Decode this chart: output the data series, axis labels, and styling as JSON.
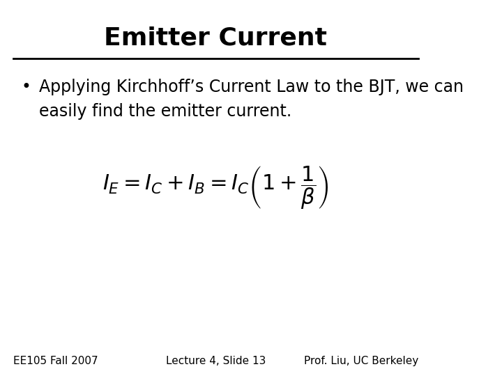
{
  "title": "Emitter Current",
  "bullet_line1": "Applying Kirchhoff’s Current Law to the BJT, we can",
  "bullet_line2": "easily find the emitter current.",
  "formula": "$I_E = I_C + I_B = I_C\\left(1 + \\dfrac{1}{\\beta}\\right)$",
  "footer_left": "EE105 Fall 2007",
  "footer_center": "Lecture 4, Slide 13",
  "footer_right": "Prof. Liu, UC Berkeley",
  "bg_color": "#ffffff",
  "text_color": "#000000",
  "title_fontsize": 26,
  "body_fontsize": 17,
  "formula_fontsize": 22,
  "footer_fontsize": 11
}
